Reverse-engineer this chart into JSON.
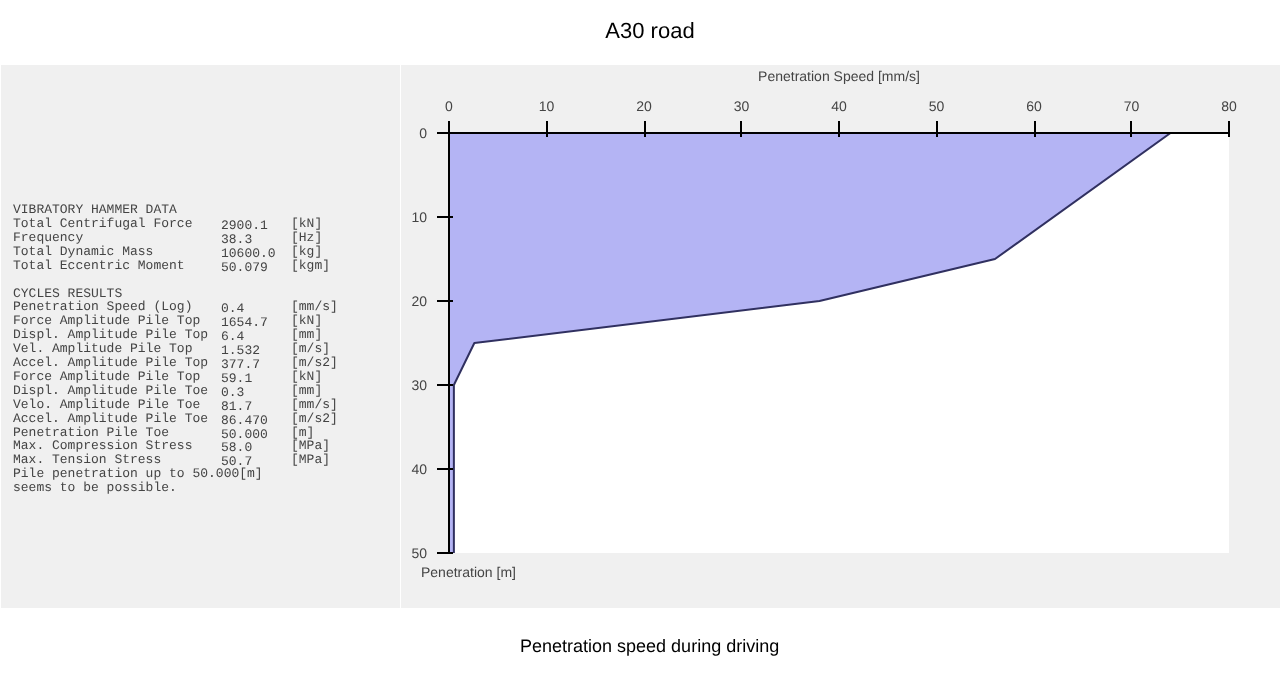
{
  "chart_data": {
    "type": "area",
    "orientation": "horizontal",
    "title": "A30 road",
    "xlabel": "Penetration Speed [mm/s]",
    "ylabel": "Penetration [m]",
    "x": [
      0,
      15,
      20,
      25,
      30,
      50
    ],
    "series": [
      {
        "color": "#b4b4f4",
        "values": [
          74,
          56,
          38,
          2.6,
          0.5,
          0.5
        ]
      }
    ],
    "xlim": [
      0,
      80
    ],
    "xticks": [
      0,
      10,
      20,
      30,
      40,
      50,
      60,
      70,
      80
    ],
    "ylim": [
      50,
      0
    ],
    "yticks": [
      0,
      10,
      20,
      30,
      40,
      50
    ],
    "grid": false,
    "annotations": [
      "VIBRATORY HAMMER DATA",
      "Total Centrifugal Force  2900.1  [kN]",
      "Frequency  38.3  [Hz]",
      "Total Dynamic Mass  10600.0  [kg]",
      "Total Eccentric Moment  50.079  [kgm]",
      "CYCLES RESULTS",
      "Penetration Speed (Log)  0.4  [mm/s]",
      "Force Amplitude Pile Top  1654.7  [kN]",
      "Displ. Amplitude Pile Top  6.4  [mm]",
      "Vel. Amplitude Pile Top  1.532  [m/s]",
      "Accel. Amplitude Pile Top  377.7  [m/s2]",
      "Force Amplitude Pile Top  59.1  [kN]",
      "Displ. Amplitude Pile Toe  0.3  [mm]",
      "Velo. Amplitude Pile Toe  81.7  [mm/s]",
      "Accel. Amplitude Pile Toe  86.470  [m/s2]",
      "Penetration Pile Toe  50.000  [m]",
      "Max. Compression Stress  58.0  [MPa]",
      "Max. Tension Stress  50.7  [MPa]",
      "Pile penetration up to 50.000[m]",
      " seems to be possible.",
      "Penetration speed during driving"
    ]
  }
}
